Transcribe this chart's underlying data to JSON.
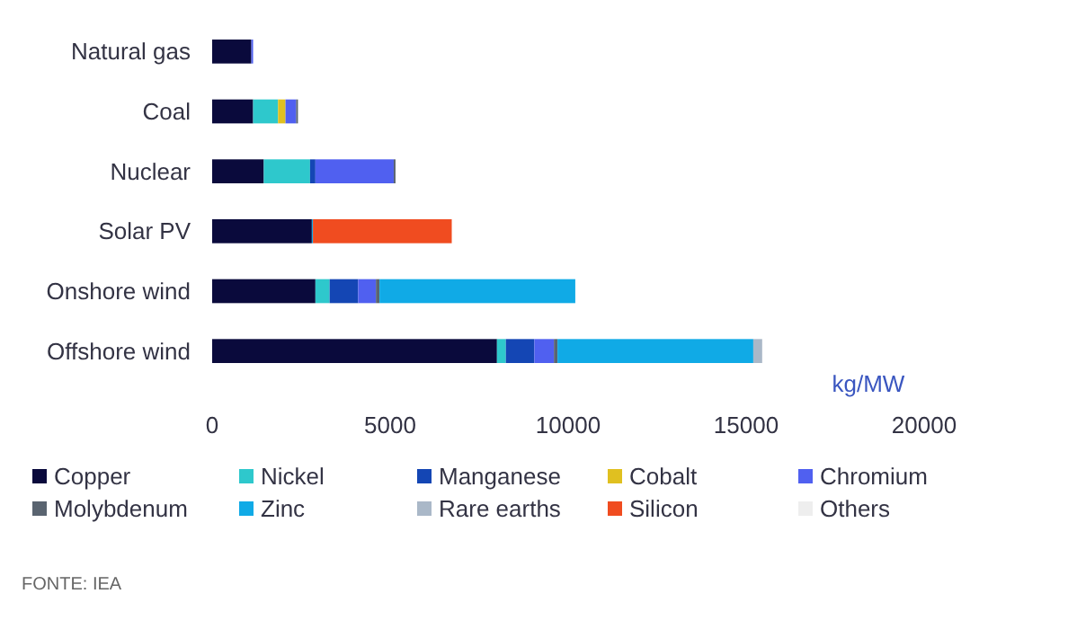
{
  "chart_data": {
    "type": "bar",
    "orientation": "horizontal",
    "stacked": true,
    "categories": [
      "Natural gas",
      "Coal",
      "Nuclear",
      "Solar PV",
      "Onshore wind",
      "Offshore wind"
    ],
    "series": [
      {
        "name": "Copper",
        "color": "#0a0a3c",
        "values": [
          1100,
          1150,
          1450,
          2800,
          2900,
          8000
        ]
      },
      {
        "name": "Nickel",
        "color": "#2ec8cc",
        "values": [
          null,
          700,
          1300,
          null,
          400,
          250
        ]
      },
      {
        "name": "Manganese",
        "color": "#1446b4",
        "values": [
          null,
          null,
          150,
          null,
          800,
          800
        ]
      },
      {
        "name": "Cobalt",
        "color": "#e0c020",
        "values": [
          null,
          210,
          null,
          null,
          null,
          null
        ]
      },
      {
        "name": "Chromium",
        "color": "#5060f0",
        "values": [
          50,
          300,
          2200,
          null,
          500,
          550
        ]
      },
      {
        "name": "Molybdenum",
        "color": "#5a6470",
        "values": [
          null,
          50,
          50,
          null,
          100,
          100
        ]
      },
      {
        "name": "Zinc",
        "color": "#10aae6",
        "values": [
          null,
          null,
          null,
          30,
          5500,
          5500
        ]
      },
      {
        "name": "Rare earths",
        "color": "#aab8c8",
        "values": [
          null,
          null,
          null,
          null,
          null,
          250
        ]
      },
      {
        "name": "Silicon",
        "color": "#f04c20",
        "values": [
          null,
          null,
          null,
          3900,
          null,
          null
        ]
      },
      {
        "name": "Others",
        "color": "#eeeeee",
        "values": [
          null,
          null,
          null,
          null,
          null,
          null
        ]
      }
    ],
    "xlabel": "kg/MW",
    "xlim": [
      0,
      20000
    ],
    "xticks": [
      0,
      5000,
      10000,
      15000,
      20000
    ],
    "legend": "bottom",
    "grid": false,
    "annotations": [
      "FONTE: IEA"
    ]
  }
}
